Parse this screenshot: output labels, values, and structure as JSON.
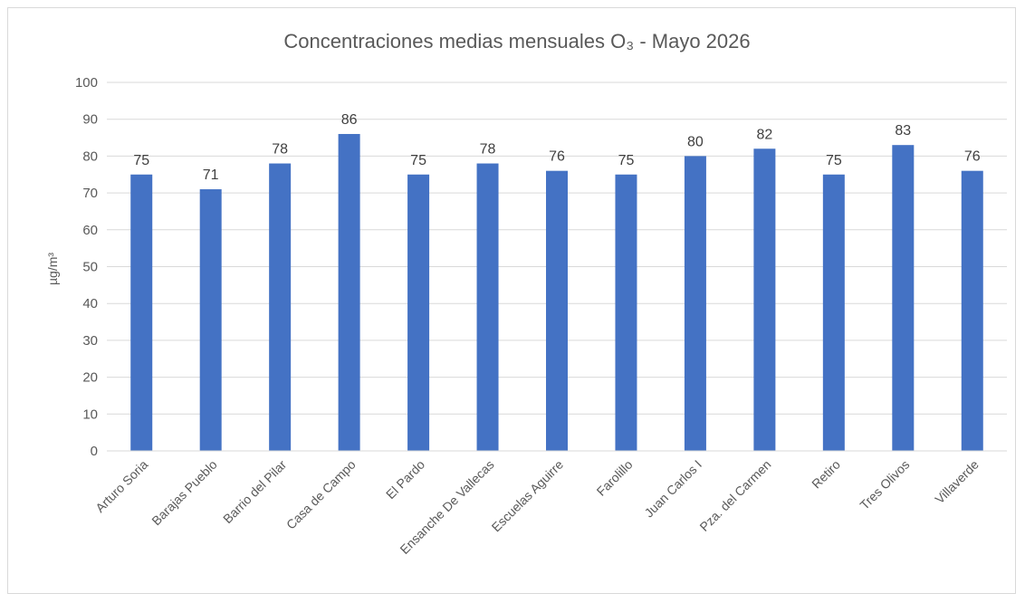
{
  "chart_data": {
    "type": "bar",
    "title": "Concentraciones medias mensuales O₃ - Mayo 2026",
    "xlabel": "",
    "ylabel": "µg/m³",
    "ylim": [
      0,
      100
    ],
    "yticks": [
      0,
      10,
      20,
      30,
      40,
      50,
      60,
      70,
      80,
      90,
      100
    ],
    "grid": true,
    "legend": "none",
    "bar_color": "#4472C4",
    "categories": [
      "Arturo Soria",
      "Barajas Pueblo",
      "Barrio del Pilar",
      "Casa de Campo",
      "El Pardo",
      "Ensanche De Vallecas",
      "Escuelas Aguirre",
      "Farolillo",
      "Juan Carlos I",
      "Pza. del Carmen",
      "Retiro",
      "Tres Olivos",
      "Villaverde"
    ],
    "values": [
      75,
      71,
      78,
      86,
      75,
      78,
      76,
      75,
      80,
      82,
      75,
      83,
      76
    ]
  }
}
